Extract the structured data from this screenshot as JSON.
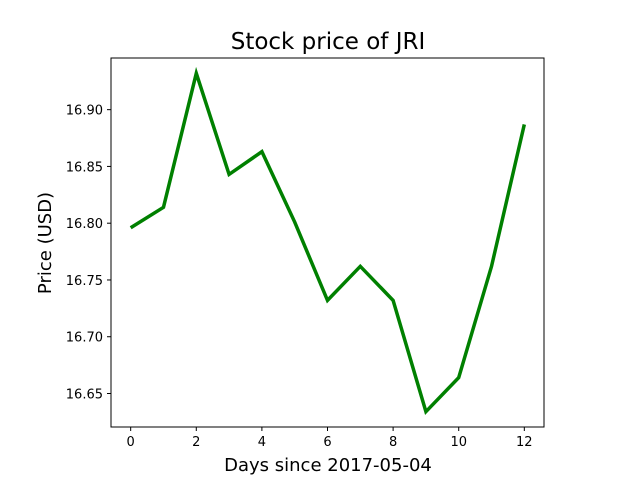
{
  "chart_data": {
    "type": "line",
    "title": "Stock price of JRI",
    "xlabel": "Days since 2017-05-04",
    "ylabel": "Price (USD)",
    "x": [
      0,
      1,
      2,
      3,
      4,
      5,
      6,
      7,
      8,
      9,
      10,
      11,
      12
    ],
    "series": [
      {
        "values": [
          16.796,
          16.814,
          16.932,
          16.843,
          16.863,
          16.801,
          16.732,
          16.762,
          16.732,
          16.634,
          16.664,
          16.762,
          16.887
        ],
        "color": "#008000"
      }
    ],
    "xlim": [
      -0.6,
      12.6
    ],
    "ylim": [
      16.6205,
      16.9455
    ],
    "xticks": [
      0,
      2,
      4,
      6,
      8,
      10,
      12
    ],
    "xtick_labels": [
      "0",
      "2",
      "4",
      "6",
      "8",
      "10",
      "12"
    ],
    "yticks": [
      16.65,
      16.7,
      16.75,
      16.8,
      16.85,
      16.9
    ],
    "ytick_labels": [
      "16.65",
      "16.70",
      "16.75",
      "16.80",
      "16.85",
      "16.90"
    ],
    "grid": false,
    "legend": "none"
  }
}
